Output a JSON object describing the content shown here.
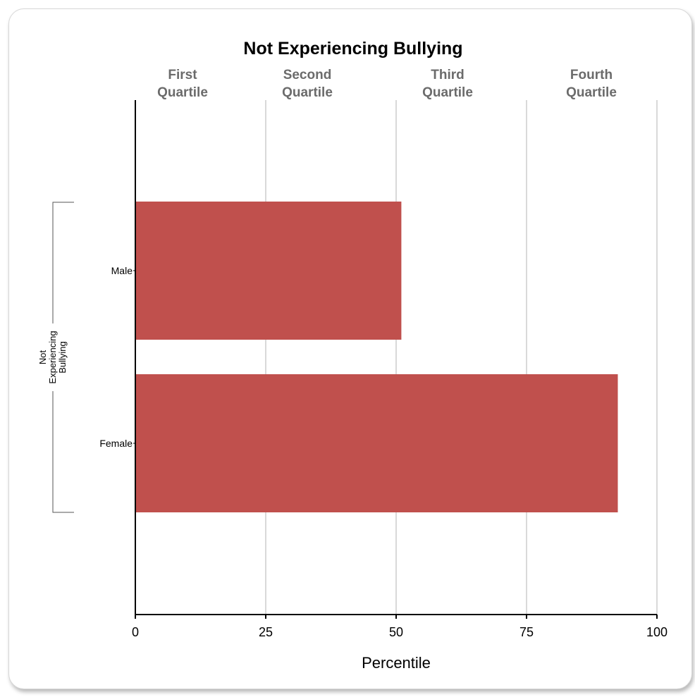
{
  "chart_data": {
    "type": "bar",
    "orientation": "horizontal",
    "title": "Not Experiencing Bullying",
    "quartile_labels": [
      {
        "line1": "First",
        "line2": "Quartile",
        "center": 12.5
      },
      {
        "line1": "Second",
        "line2": "Quartile",
        "center": 37.5
      },
      {
        "line1": "Third",
        "line2": "Quartile",
        "center": 62.5
      },
      {
        "line1": "Fourth",
        "line2": "Quartile",
        "center": 87.5
      }
    ],
    "group_label": [
      "Not",
      "Experiencing",
      "Bullying"
    ],
    "categories": [
      "Male",
      "Female"
    ],
    "values": [
      51,
      92.5
    ],
    "xlabel": "Percentile",
    "ylabel": "",
    "xlim": [
      0,
      100
    ],
    "xticks": [
      0,
      25,
      50,
      75,
      100
    ],
    "grid": true,
    "bar_color": "#c0504d",
    "grid_color": "#d9d9d9"
  }
}
